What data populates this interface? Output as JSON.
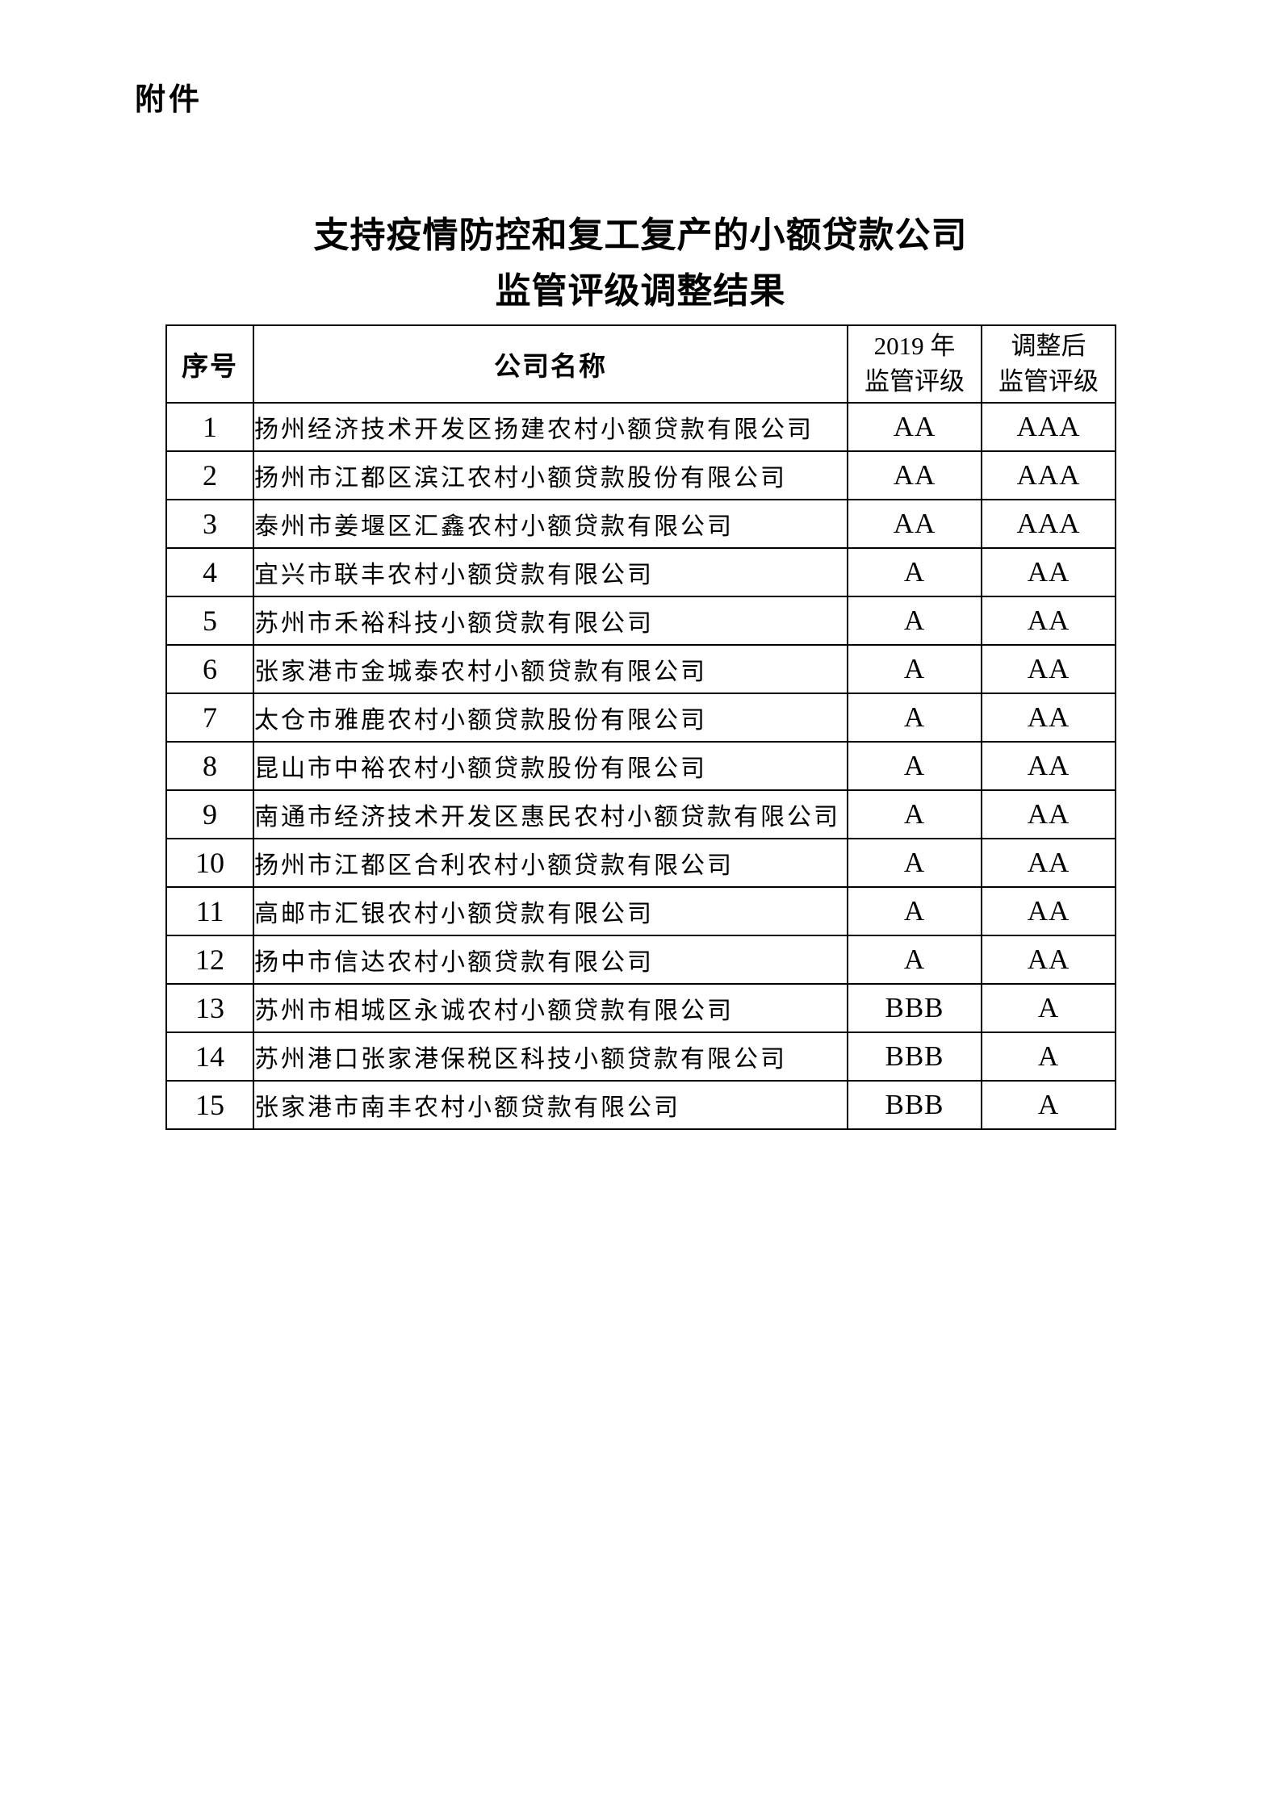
{
  "page": {
    "attachment_label": "附件",
    "title_line1": "支持疫情防控和复工复产的小额贷款公司",
    "title_line2": "监管评级调整结果"
  },
  "table": {
    "headers": {
      "no": "序号",
      "name": "公司名称",
      "rating_2019": "2019 年\n监管评级",
      "rating_adjusted": "调整后\n监管评级"
    },
    "rows": [
      {
        "no": "1",
        "name": "扬州经济技术开发区扬建农村小额贷款有限公司",
        "rating_2019": "AA",
        "rating_adjusted": "AAA"
      },
      {
        "no": "2",
        "name": "扬州市江都区滨江农村小额贷款股份有限公司",
        "rating_2019": "AA",
        "rating_adjusted": "AAA"
      },
      {
        "no": "3",
        "name": "泰州市姜堰区汇鑫农村小额贷款有限公司",
        "rating_2019": "AA",
        "rating_adjusted": "AAA"
      },
      {
        "no": "4",
        "name": "宜兴市联丰农村小额贷款有限公司",
        "rating_2019": "A",
        "rating_adjusted": "AA"
      },
      {
        "no": "5",
        "name": "苏州市禾裕科技小额贷款有限公司",
        "rating_2019": "A",
        "rating_adjusted": "AA"
      },
      {
        "no": "6",
        "name": "张家港市金城泰农村小额贷款有限公司",
        "rating_2019": "A",
        "rating_adjusted": "AA"
      },
      {
        "no": "7",
        "name": "太仓市雅鹿农村小额贷款股份有限公司",
        "rating_2019": "A",
        "rating_adjusted": "AA"
      },
      {
        "no": "8",
        "name": "昆山市中裕农村小额贷款股份有限公司",
        "rating_2019": "A",
        "rating_adjusted": "AA"
      },
      {
        "no": "9",
        "name": "南通市经济技术开发区惠民农村小额贷款有限公司",
        "rating_2019": "A",
        "rating_adjusted": "AA"
      },
      {
        "no": "10",
        "name": "扬州市江都区合利农村小额贷款有限公司",
        "rating_2019": "A",
        "rating_adjusted": "AA"
      },
      {
        "no": "11",
        "name": "高邮市汇银农村小额贷款有限公司",
        "rating_2019": "A",
        "rating_adjusted": "AA"
      },
      {
        "no": "12",
        "name": "扬中市信达农村小额贷款有限公司",
        "rating_2019": "A",
        "rating_adjusted": "AA"
      },
      {
        "no": "13",
        "name": "苏州市相城区永诚农村小额贷款有限公司",
        "rating_2019": "BBB",
        "rating_adjusted": "A"
      },
      {
        "no": "14",
        "name": "苏州港口张家港保税区科技小额贷款有限公司",
        "rating_2019": "BBB",
        "rating_adjusted": "A"
      },
      {
        "no": "15",
        "name": "张家港市南丰农村小额贷款有限公司",
        "rating_2019": "BBB",
        "rating_adjusted": "A"
      }
    ]
  }
}
